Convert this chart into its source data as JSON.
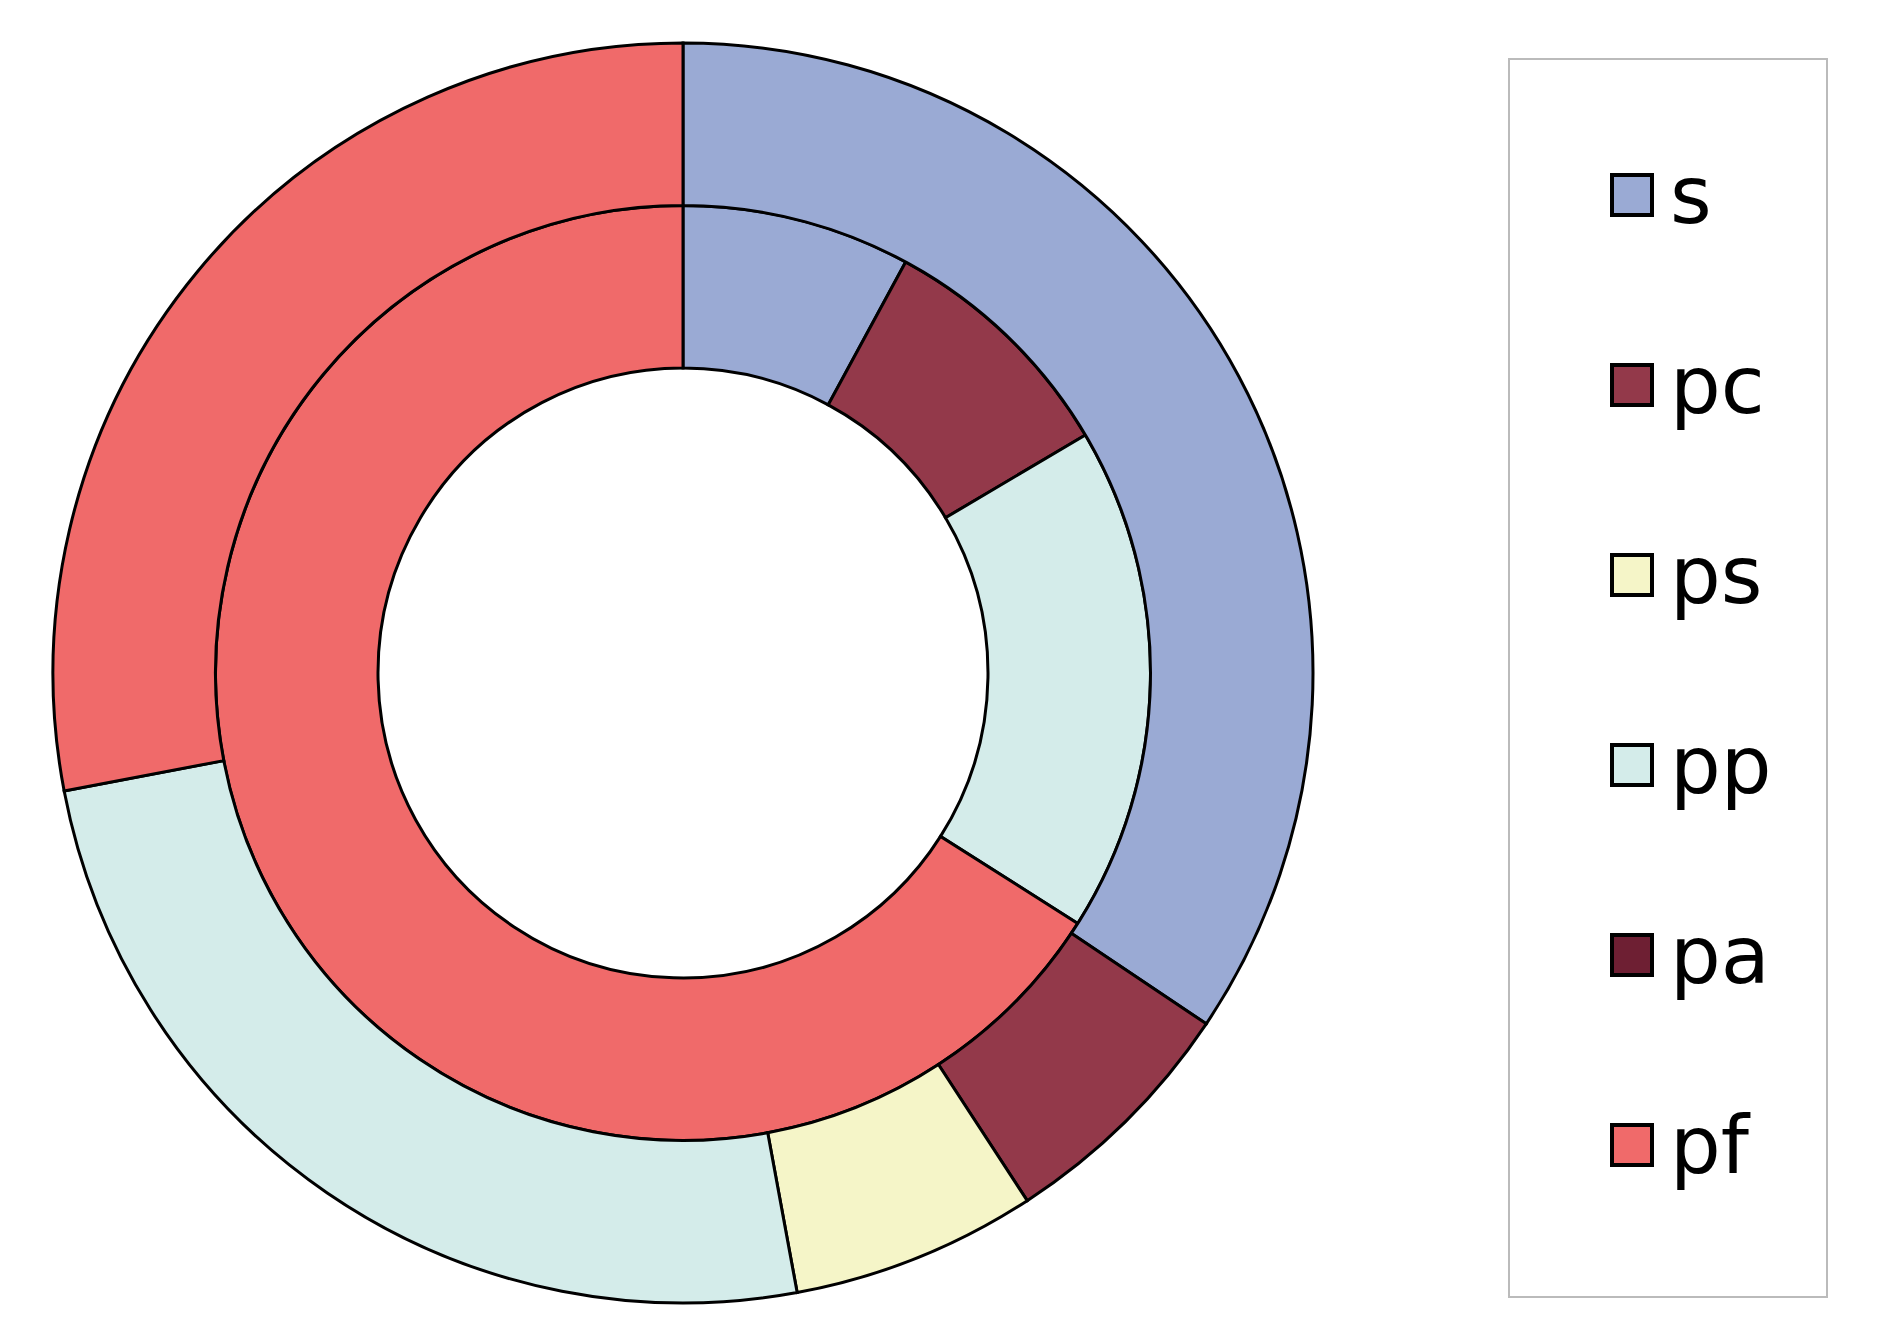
{
  "chart_data": {
    "type": "donut",
    "categories": [
      "s",
      "pc",
      "ps",
      "pp",
      "pa",
      "pf"
    ],
    "colors": [
      "#9aaad4",
      "#93394a",
      "#f5f5c8",
      "#d4ecea",
      "#6e1f33",
      "#f06a6a"
    ],
    "series": [
      {
        "values": [
          7.9,
          8.6,
          null,
          17.5,
          null,
          66.0
        ]
      },
      {
        "values": [
          34.4,
          6.4,
          6.3,
          24.9,
          null,
          28.0
        ]
      }
    ],
    "legend": "right"
  }
}
